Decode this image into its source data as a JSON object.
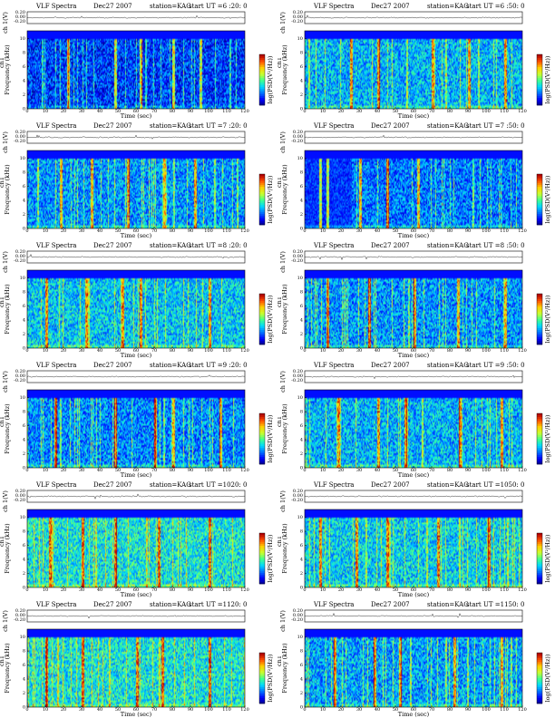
{
  "chart_data": {
    "type": "heatmap",
    "layout": "6 rows x 2 columns of spectrogram panels",
    "common": {
      "title": "VLF Spectra",
      "date": "Dec27 2007",
      "station": "station=KAG",
      "start_prefix": "start UT =",
      "top_ylabel": "ch 1(V)",
      "top_yticks": [
        "0.20",
        "0.00",
        "-0.20"
      ],
      "spec_ylabel_ch": "ch1",
      "spec_ylabel": "Frequency (kHz)",
      "freq_ticks": [
        "0",
        "2",
        "4",
        "6",
        "8",
        "10"
      ],
      "freq_range": [
        0,
        10
      ],
      "xlabel": "Time (sec)",
      "xlim": [
        0,
        120
      ],
      "x_ticks": [
        "0",
        "10",
        "20",
        "30",
        "40",
        "50",
        "60",
        "70",
        "80",
        "90",
        "100",
        "110",
        "120"
      ],
      "colorbar_label": "log(PSD(V²/Hz))",
      "colormap": [
        "#00007a",
        "#0000ff",
        "#0070ff",
        "#00d8ff",
        "#40ff90",
        "#c8ff30",
        "#ffd000",
        "#ff5000",
        "#b00000"
      ]
    },
    "panels": [
      {
        "start_ut": "6 :20: 0",
        "level": 0.25,
        "bursts": [
          22,
          48,
          62,
          80,
          95
        ],
        "noise_shift": null
      },
      {
        "start_ut": "6 :50: 0",
        "level": 0.45,
        "bursts": [
          25,
          40,
          70,
          90,
          110
        ],
        "noise_shift": null
      },
      {
        "start_ut": "7 :20: 0",
        "level": 0.4,
        "bursts": [
          18,
          35,
          55,
          75,
          92
        ],
        "noise_shift": null
      },
      {
        "start_ut": "7 :50: 0",
        "level": 0.35,
        "bursts": [
          8,
          12,
          30,
          45,
          62
        ],
        "noise_shift": 26
      },
      {
        "start_ut": "8 :20: 0",
        "level": 0.48,
        "bursts": [
          10,
          32,
          52,
          62,
          100
        ],
        "noise_shift": null
      },
      {
        "start_ut": "8 :50: 0",
        "level": 0.4,
        "bursts": [
          12,
          35,
          60,
          84,
          110
        ],
        "noise_shift": null
      },
      {
        "start_ut": "9 :20: 0",
        "level": 0.38,
        "bursts": [
          15,
          48,
          70,
          80,
          106
        ],
        "noise_shift": null
      },
      {
        "start_ut": "9 :50: 0",
        "level": 0.45,
        "bursts": [
          18,
          40,
          55,
          85,
          108
        ],
        "noise_shift": null
      },
      {
        "start_ut": "1020: 0",
        "level": 0.55,
        "bursts": [
          12,
          30,
          48,
          72,
          100
        ],
        "noise_shift": null
      },
      {
        "start_ut": "1050: 0",
        "level": 0.5,
        "bursts": [
          8,
          28,
          45,
          73,
          101
        ],
        "noise_shift": null
      },
      {
        "start_ut": "1120: 0",
        "level": 0.55,
        "bursts": [
          10,
          30,
          60,
          74,
          100
        ],
        "noise_shift": null
      },
      {
        "start_ut": "1150: 0",
        "level": 0.42,
        "bursts": [
          16,
          38,
          52,
          82,
          108
        ],
        "noise_shift": null
      }
    ]
  }
}
